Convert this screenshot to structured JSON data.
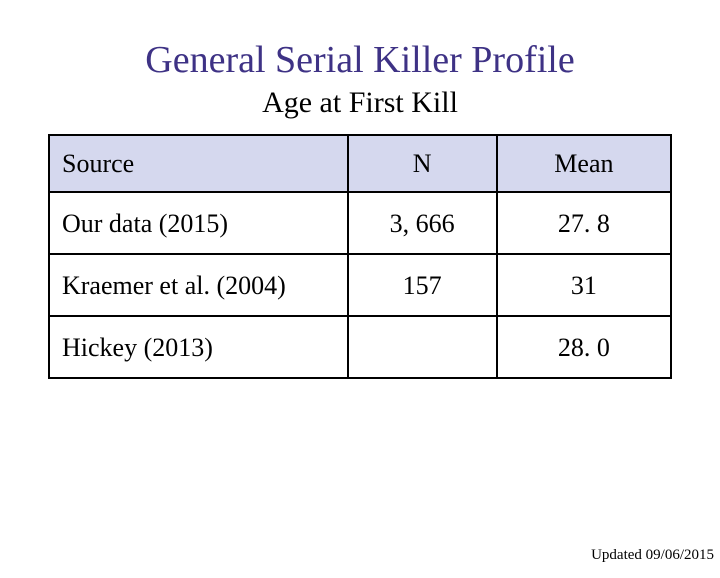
{
  "title": "General Serial Killer Profile",
  "subtitle": "Age at First Kill",
  "title_color": "#3e3285",
  "header_bg": "#d5d8ee",
  "border_color": "#000000",
  "font_family": "Times New Roman",
  "table": {
    "columns": [
      "Source",
      "N",
      "Mean"
    ],
    "column_align": [
      "left",
      "center",
      "center"
    ],
    "rows": [
      {
        "source": "Our data (2015)",
        "n": "3, 666",
        "mean": "27. 8"
      },
      {
        "source": "Kraemer et al. (2004)",
        "n": "157",
        "mean": "31"
      },
      {
        "source": "Hickey (2013)",
        "n": "",
        "mean": "28. 0"
      }
    ]
  },
  "updated_label": "Updated 09/06/2015"
}
